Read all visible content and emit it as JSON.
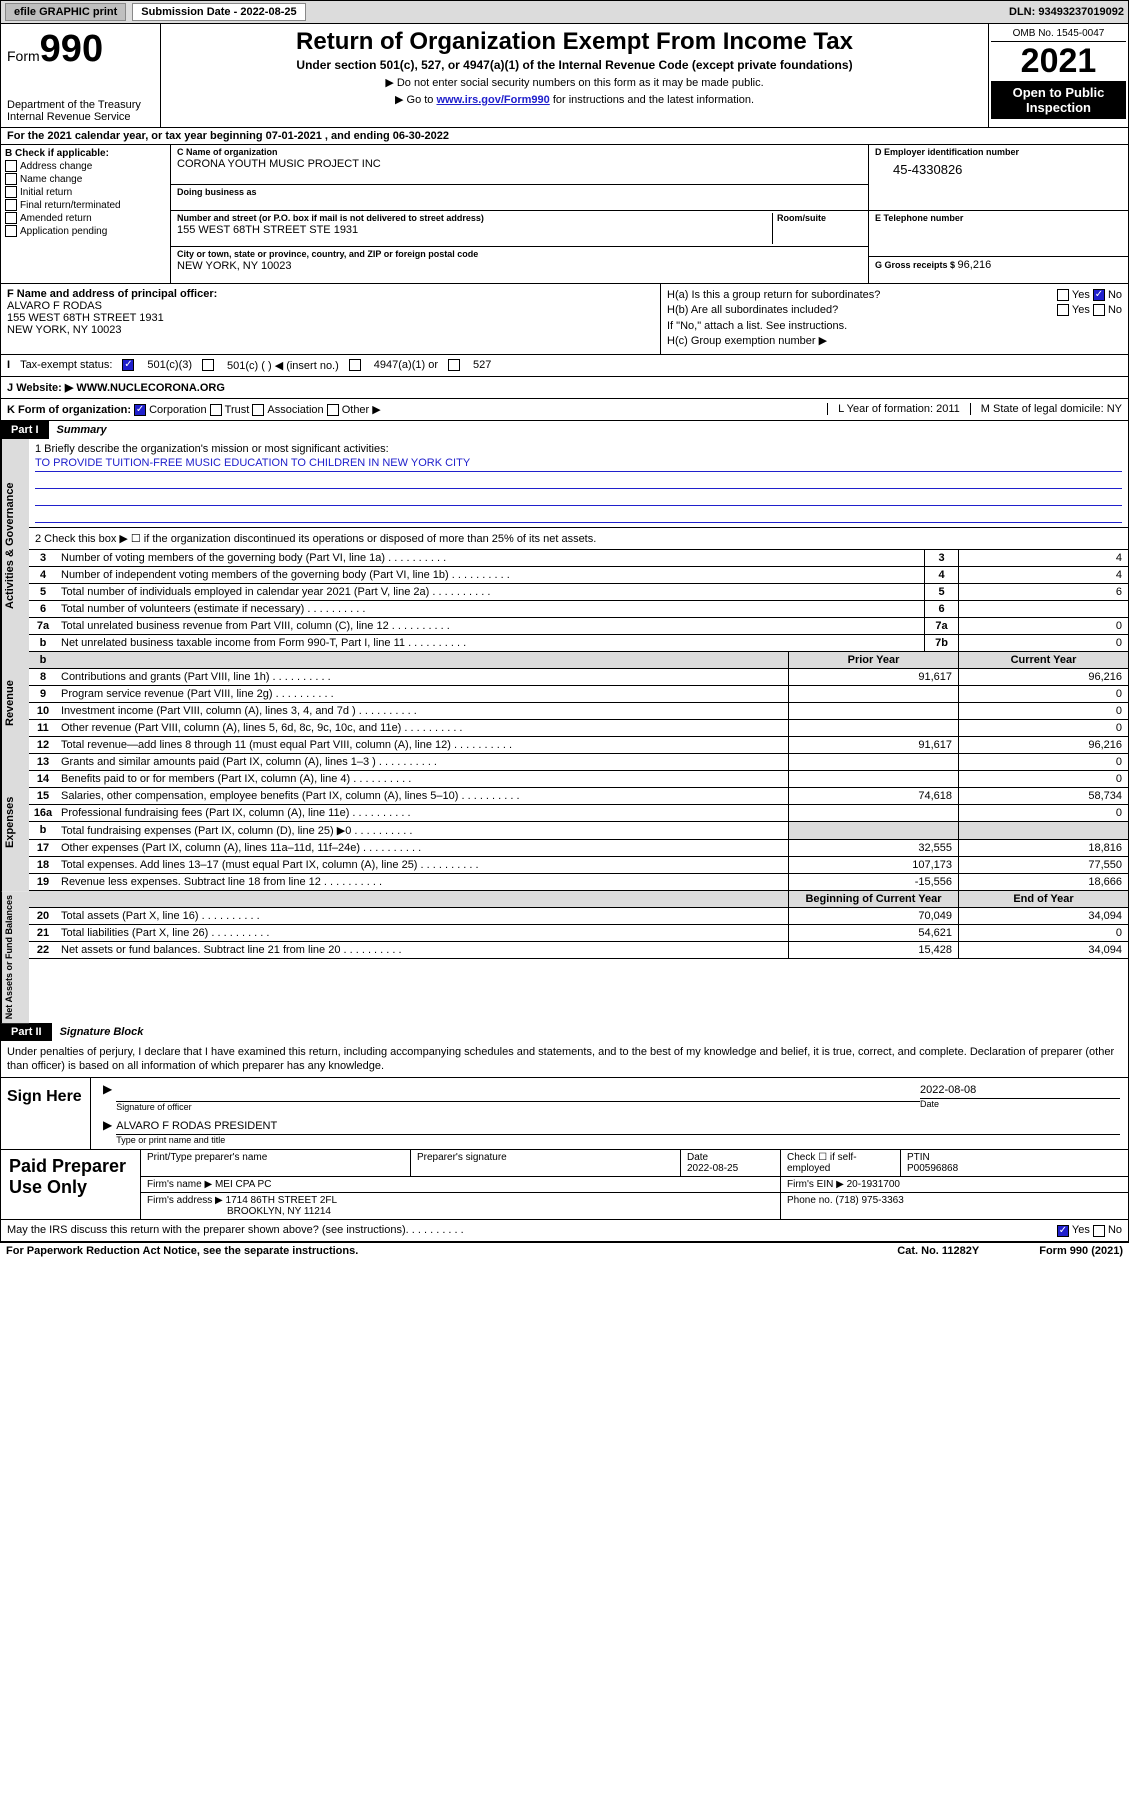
{
  "topbar": {
    "efile": "efile GRAPHIC print",
    "subdate_lbl": "Submission Date - ",
    "subdate": "2022-08-25",
    "dln": "DLN: 93493237019092"
  },
  "header": {
    "form": "Form",
    "form_num": "990",
    "dept": "Department of the Treasury",
    "irs": "Internal Revenue Service",
    "title": "Return of Organization Exempt From Income Tax",
    "sub1": "Under section 501(c), 527, or 4947(a)(1) of the Internal Revenue Code (except private foundations)",
    "sub2a": "▶ Do not enter social security numbers on this form as it may be made public.",
    "sub2b": "▶ Go to ",
    "sub2_link": "www.irs.gov/Form990",
    "sub2c": " for instructions and the latest information.",
    "omb": "OMB No. 1545-0047",
    "year": "2021",
    "open": "Open to Public Inspection"
  },
  "effective": "For the 2021 calendar year, or tax year beginning 07-01-2021  , and ending 06-30-2022",
  "blockB": {
    "b_hdr": "B Check if applicable:",
    "b1": "Address change",
    "b2": "Name change",
    "b3": "Initial return",
    "b4": "Final return/terminated",
    "b5": "Amended return",
    "b6": "Application pending",
    "c_lbl": "C Name of organization",
    "c_val": "CORONA YOUTH MUSIC PROJECT INC",
    "dba_lbl": "Doing business as",
    "addr_lbl": "Number and street (or P.O. box if mail is not delivered to street address)",
    "room_lbl": "Room/suite",
    "addr_val": "155 WEST 68TH STREET STE 1931",
    "city_lbl": "City or town, state or province, country, and ZIP or foreign postal code",
    "city_val": "NEW YORK, NY  10023",
    "d_lbl": "D Employer identification number",
    "d_val": "45-4330826",
    "e_lbl": "E Telephone number",
    "g_lbl": "G Gross receipts $ ",
    "g_val": "96,216"
  },
  "blockF": {
    "f_lbl": "F Name and address of principal officer:",
    "f_name": "ALVARO F RODAS",
    "f_addr1": "155 WEST 68TH STREET 1931",
    "f_addr2": "NEW YORK, NY  10023",
    "ha": "H(a)  Is this a group return for subordinates?",
    "hb": "H(b)  Are all subordinates included?",
    "hb_note": "If \"No,\" attach a list. See instructions.",
    "hc": "H(c)  Group exemption number ▶",
    "yes": "Yes",
    "no": "No"
  },
  "tax_status": {
    "lbl": "Tax-exempt status:",
    "c3": "501(c)(3)",
    "c": "501(c) (  ) ◀ (insert no.)",
    "c4947": "4947(a)(1) or",
    "c527": "527"
  },
  "website": {
    "lbl": "Website: ▶",
    "val": "WWW.NUCLECORONA.ORG"
  },
  "rowK": {
    "k": "K Form of organization:",
    "corp": "Corporation",
    "trust": "Trust",
    "assoc": "Association",
    "other": "Other ▶",
    "l": "L Year of formation: 2011",
    "m": "M State of legal domicile: NY"
  },
  "part1": {
    "tab": "Part I",
    "title": "Summary",
    "l1_lbl": "1  Briefly describe the organization's mission or most significant activities:",
    "l1_val": "TO PROVIDE TUITION-FREE MUSIC EDUCATION TO CHILDREN IN NEW YORK CITY",
    "l2": "2  Check this box ▶ ☐  if the organization discontinued its operations or disposed of more than 25% of its net assets.",
    "rows": [
      {
        "n": "3",
        "t": "Number of voting members of the governing body (Part VI, line 1a)",
        "b": "3",
        "v": "4"
      },
      {
        "n": "4",
        "t": "Number of independent voting members of the governing body (Part VI, line 1b)",
        "b": "4",
        "v": "4"
      },
      {
        "n": "5",
        "t": "Total number of individuals employed in calendar year 2021 (Part V, line 2a)",
        "b": "5",
        "v": "6"
      },
      {
        "n": "6",
        "t": "Total number of volunteers (estimate if necessary)",
        "b": "6",
        "v": ""
      },
      {
        "n": "7a",
        "t": "Total unrelated business revenue from Part VIII, column (C), line 12",
        "b": "7a",
        "v": "0"
      },
      {
        "n": "b",
        "t": "Net unrelated business taxable income from Form 990-T, Part I, line 11",
        "b": "7b",
        "v": "0"
      }
    ],
    "col_prior": "Prior Year",
    "col_current": "Current Year",
    "rev_rows": [
      {
        "n": "8",
        "t": "Contributions and grants (Part VIII, line 1h)",
        "p": "91,617",
        "c": "96,216"
      },
      {
        "n": "9",
        "t": "Program service revenue (Part VIII, line 2g)",
        "p": "",
        "c": "0"
      },
      {
        "n": "10",
        "t": "Investment income (Part VIII, column (A), lines 3, 4, and 7d )",
        "p": "",
        "c": "0"
      },
      {
        "n": "11",
        "t": "Other revenue (Part VIII, column (A), lines 5, 6d, 8c, 9c, 10c, and 11e)",
        "p": "",
        "c": "0"
      },
      {
        "n": "12",
        "t": "Total revenue—add lines 8 through 11 (must equal Part VIII, column (A), line 12)",
        "p": "91,617",
        "c": "96,216"
      }
    ],
    "exp_rows": [
      {
        "n": "13",
        "t": "Grants and similar amounts paid (Part IX, column (A), lines 1–3 )",
        "p": "",
        "c": "0"
      },
      {
        "n": "14",
        "t": "Benefits paid to or for members (Part IX, column (A), line 4)",
        "p": "",
        "c": "0"
      },
      {
        "n": "15",
        "t": "Salaries, other compensation, employee benefits (Part IX, column (A), lines 5–10)",
        "p": "74,618",
        "c": "58,734"
      },
      {
        "n": "16a",
        "t": "Professional fundraising fees (Part IX, column (A), line 11e)",
        "p": "",
        "c": "0"
      },
      {
        "n": "b",
        "t": "Total fundraising expenses (Part IX, column (D), line 25) ▶0",
        "p": "shade",
        "c": "shade"
      },
      {
        "n": "17",
        "t": "Other expenses (Part IX, column (A), lines 11a–11d, 11f–24e)",
        "p": "32,555",
        "c": "18,816"
      },
      {
        "n": "18",
        "t": "Total expenses. Add lines 13–17 (must equal Part IX, column (A), line 25)",
        "p": "107,173",
        "c": "77,550"
      },
      {
        "n": "19",
        "t": "Revenue less expenses. Subtract line 18 from line 12",
        "p": "-15,556",
        "c": "18,666"
      }
    ],
    "col_beg": "Beginning of Current Year",
    "col_end": "End of Year",
    "net_rows": [
      {
        "n": "20",
        "t": "Total assets (Part X, line 16)",
        "p": "70,049",
        "c": "34,094"
      },
      {
        "n": "21",
        "t": "Total liabilities (Part X, line 26)",
        "p": "54,621",
        "c": "0"
      },
      {
        "n": "22",
        "t": "Net assets or fund balances. Subtract line 21 from line 20",
        "p": "15,428",
        "c": "34,094"
      }
    ]
  },
  "vtabs": {
    "gov": "Activities & Governance",
    "rev": "Revenue",
    "exp": "Expenses",
    "net": "Net Assets or Fund Balances"
  },
  "part2": {
    "tab": "Part II",
    "title": "Signature Block",
    "perjury": "Under penalties of perjury, I declare that I have examined this return, including accompanying schedules and statements, and to the best of my knowledge and belief, it is true, correct, and complete. Declaration of preparer (other than officer) is based on all information of which preparer has any knowledge."
  },
  "sign": {
    "hdr": "Sign Here",
    "sig_lbl": "Signature of officer",
    "date_lbl": "Date",
    "date_val": "2022-08-08",
    "name": "ALVARO F RODAS  PRESIDENT",
    "name_lbl": "Type or print name and title"
  },
  "paid": {
    "hdr": "Paid Preparer Use Only",
    "c1": "Print/Type preparer's name",
    "c2": "Preparer's signature",
    "c3": "Date",
    "c3v": "2022-08-25",
    "c4": "Check ☐ if self-employed",
    "c5": "PTIN",
    "c5v": "P00596868",
    "firm_lbl": "Firm's name    ▶ ",
    "firm": "MEI CPA PC",
    "ein_lbl": "Firm's EIN ▶ ",
    "ein": "20-1931700",
    "addr_lbl": "Firm's address ▶ ",
    "addr1": "1714 86TH STREET 2FL",
    "addr2": "BROOKLYN, NY  11214",
    "phone_lbl": "Phone no. ",
    "phone": "(718) 975-3363"
  },
  "may": {
    "txt": "May the IRS discuss this return with the preparer shown above? (see instructions)",
    "yes": "Yes",
    "no": "No"
  },
  "footer": {
    "l": "For Paperwork Reduction Act Notice, see the separate instructions.",
    "m": "Cat. No. 11282Y",
    "r": "Form 990 (2021)"
  }
}
